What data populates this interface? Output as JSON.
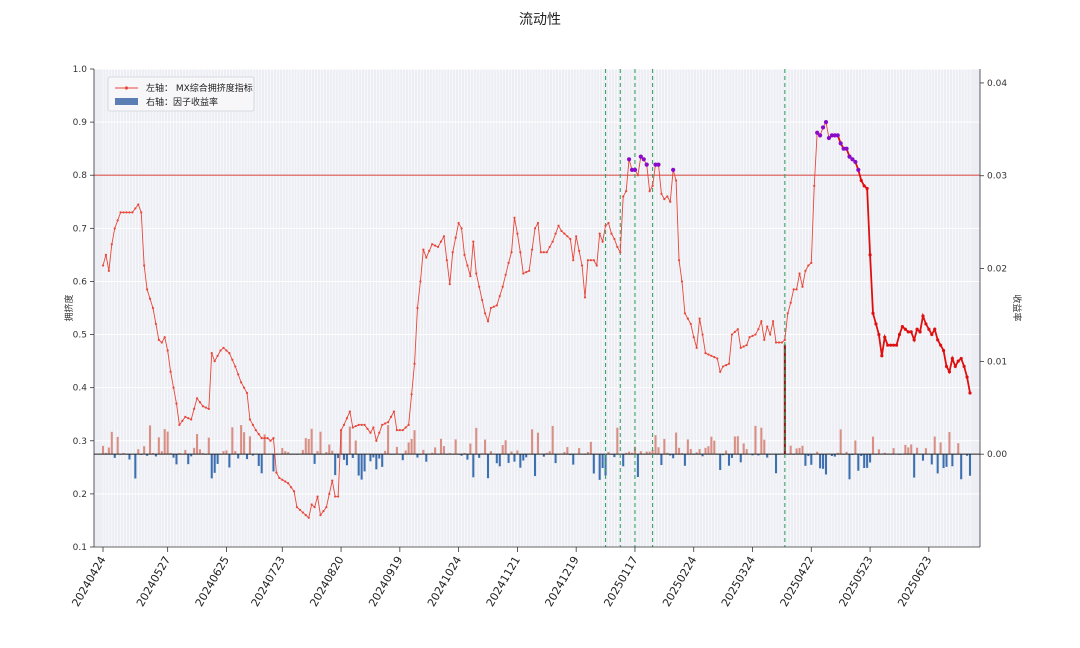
{
  "chart_data": {
    "type": "line",
    "title": "流动性",
    "ylabel_left": "拥挤度",
    "ylabel_right": "收益率",
    "ylim_left": [
      0.1,
      1.0
    ],
    "ylim_right": [
      -0.01,
      0.0415
    ],
    "yticks_left": [
      "0.1",
      "0.2",
      "0.3",
      "0.4",
      "0.5",
      "0.6",
      "0.7",
      "0.8",
      "0.9",
      "1.0"
    ],
    "yticks_right": [
      "0.00",
      "0.01",
      "0.02",
      "0.03",
      "0.04"
    ],
    "x_tick_labels": [
      "20240424",
      "20240527",
      "20240625",
      "20240723",
      "20240820",
      "20240919",
      "20241024",
      "20241121",
      "20241219",
      "20250117",
      "20250224",
      "20250324",
      "20250422",
      "20250523",
      "20250623"
    ],
    "x_tick_index": [
      0,
      22,
      42,
      61,
      81,
      101,
      121,
      141,
      161,
      181,
      201,
      221,
      241,
      261,
      281
    ],
    "n_points": 289,
    "threshold": 0.8,
    "legend": [
      {
        "label": "左轴： MX综合拥挤度指标",
        "kind": "line",
        "color": "#e8473a"
      },
      {
        "label": "右轴：因子收益率",
        "kind": "bar",
        "color": "#5b7fb4"
      }
    ],
    "legend_position": "upper-left",
    "grid": true,
    "colors": {
      "line": "#e8473a",
      "line_bold": "#e00f0f",
      "extreme": "#8b0bc9",
      "bar_pos": "#d98f84",
      "bar_neg": "#3d70b0",
      "bar_big": "#8c1a1a",
      "threshold": "#d9534f",
      "vline": "#2ca05a",
      "plot_bg": "#eceef4",
      "grid": "#ffffff"
    },
    "vlines_index": [
      171,
      176,
      181,
      187,
      232
    ],
    "bold_start_index": 247,
    "line_anchors": [
      [
        0,
        0.63
      ],
      [
        1,
        0.65
      ],
      [
        2,
        0.62
      ],
      [
        3,
        0.67
      ],
      [
        4,
        0.7
      ],
      [
        6,
        0.73
      ],
      [
        10,
        0.73
      ],
      [
        12,
        0.745
      ],
      [
        13,
        0.73
      ],
      [
        14,
        0.63
      ],
      [
        15,
        0.585
      ],
      [
        17,
        0.55
      ],
      [
        19,
        0.49
      ],
      [
        20,
        0.485
      ],
      [
        21,
        0.495
      ],
      [
        22,
        0.47
      ],
      [
        23,
        0.43
      ],
      [
        25,
        0.37
      ],
      [
        26,
        0.33
      ],
      [
        28,
        0.345
      ],
      [
        30,
        0.34
      ],
      [
        32,
        0.38
      ],
      [
        34,
        0.365
      ],
      [
        36,
        0.36
      ],
      [
        37,
        0.465
      ],
      [
        38,
        0.45
      ],
      [
        40,
        0.47
      ],
      [
        41,
        0.475
      ],
      [
        43,
        0.465
      ],
      [
        45,
        0.44
      ],
      [
        47,
        0.41
      ],
      [
        49,
        0.39
      ],
      [
        50,
        0.34
      ],
      [
        52,
        0.32
      ],
      [
        54,
        0.305
      ],
      [
        56,
        0.305
      ],
      [
        57,
        0.3
      ],
      [
        58,
        0.305
      ],
      [
        59,
        0.24
      ],
      [
        60,
        0.23
      ],
      [
        63,
        0.22
      ],
      [
        65,
        0.205
      ],
      [
        66,
        0.175
      ],
      [
        68,
        0.165
      ],
      [
        70,
        0.155
      ],
      [
        71,
        0.18
      ],
      [
        72,
        0.175
      ],
      [
        73,
        0.195
      ],
      [
        74,
        0.16
      ],
      [
        76,
        0.175
      ],
      [
        77,
        0.2
      ],
      [
        78,
        0.225
      ],
      [
        79,
        0.195
      ],
      [
        80,
        0.195
      ],
      [
        81,
        0.32
      ],
      [
        82,
        0.33
      ],
      [
        84,
        0.355
      ],
      [
        85,
        0.325
      ],
      [
        87,
        0.33
      ],
      [
        89,
        0.33
      ],
      [
        91,
        0.315
      ],
      [
        92,
        0.325
      ],
      [
        93,
        0.3
      ],
      [
        95,
        0.33
      ],
      [
        97,
        0.335
      ],
      [
        99,
        0.355
      ],
      [
        100,
        0.32
      ],
      [
        102,
        0.32
      ],
      [
        104,
        0.33
      ],
      [
        106,
        0.445
      ],
      [
        107,
        0.55
      ],
      [
        108,
        0.6
      ],
      [
        109,
        0.66
      ],
      [
        110,
        0.645
      ],
      [
        112,
        0.67
      ],
      [
        114,
        0.665
      ],
      [
        116,
        0.685
      ],
      [
        118,
        0.595
      ],
      [
        119,
        0.655
      ],
      [
        121,
        0.71
      ],
      [
        122,
        0.7
      ],
      [
        123,
        0.65
      ],
      [
        125,
        0.61
      ],
      [
        126,
        0.675
      ],
      [
        127,
        0.615
      ],
      [
        128,
        0.59
      ],
      [
        130,
        0.54
      ],
      [
        131,
        0.525
      ],
      [
        132,
        0.55
      ],
      [
        134,
        0.555
      ],
      [
        136,
        0.59
      ],
      [
        138,
        0.635
      ],
      [
        139,
        0.655
      ],
      [
        140,
        0.72
      ],
      [
        141,
        0.69
      ],
      [
        142,
        0.655
      ],
      [
        143,
        0.615
      ],
      [
        145,
        0.62
      ],
      [
        147,
        0.7
      ],
      [
        148,
        0.71
      ],
      [
        149,
        0.655
      ],
      [
        151,
        0.655
      ],
      [
        153,
        0.675
      ],
      [
        155,
        0.705
      ],
      [
        156,
        0.695
      ],
      [
        157,
        0.69
      ],
      [
        159,
        0.68
      ],
      [
        160,
        0.64
      ],
      [
        161,
        0.685
      ],
      [
        163,
        0.63
      ],
      [
        164,
        0.57
      ],
      [
        165,
        0.64
      ],
      [
        167,
        0.64
      ],
      [
        168,
        0.63
      ],
      [
        169,
        0.69
      ],
      [
        170,
        0.675
      ],
      [
        171,
        0.705
      ],
      [
        172,
        0.71
      ],
      [
        173,
        0.69
      ],
      [
        174,
        0.68
      ],
      [
        175,
        0.665
      ],
      [
        176,
        0.655
      ],
      [
        177,
        0.76
      ],
      [
        178,
        0.77
      ],
      [
        179,
        0.83
      ],
      [
        180,
        0.81
      ],
      [
        181,
        0.81
      ],
      [
        182,
        0.8
      ],
      [
        183,
        0.835
      ],
      [
        184,
        0.83
      ],
      [
        185,
        0.82
      ],
      [
        186,
        0.77
      ],
      [
        187,
        0.78
      ],
      [
        188,
        0.82
      ],
      [
        189,
        0.82
      ],
      [
        190,
        0.765
      ],
      [
        191,
        0.755
      ],
      [
        192,
        0.76
      ],
      [
        193,
        0.75
      ],
      [
        194,
        0.81
      ],
      [
        195,
        0.79
      ],
      [
        196,
        0.64
      ],
      [
        197,
        0.6
      ],
      [
        198,
        0.54
      ],
      [
        200,
        0.52
      ],
      [
        201,
        0.495
      ],
      [
        202,
        0.475
      ],
      [
        203,
        0.53
      ],
      [
        204,
        0.5
      ],
      [
        205,
        0.465
      ],
      [
        207,
        0.46
      ],
      [
        209,
        0.455
      ],
      [
        210,
        0.43
      ],
      [
        211,
        0.44
      ],
      [
        213,
        0.445
      ],
      [
        214,
        0.5
      ],
      [
        216,
        0.51
      ],
      [
        217,
        0.475
      ],
      [
        219,
        0.48
      ],
      [
        220,
        0.495
      ],
      [
        222,
        0.5
      ],
      [
        223,
        0.51
      ],
      [
        224,
        0.525
      ],
      [
        225,
        0.49
      ],
      [
        226,
        0.515
      ],
      [
        227,
        0.5
      ],
      [
        228,
        0.525
      ],
      [
        229,
        0.485
      ],
      [
        231,
        0.485
      ],
      [
        232,
        0.49
      ],
      [
        233,
        0.54
      ],
      [
        234,
        0.56
      ],
      [
        235,
        0.585
      ],
      [
        236,
        0.585
      ],
      [
        237,
        0.615
      ],
      [
        238,
        0.59
      ],
      [
        239,
        0.62
      ],
      [
        240,
        0.63
      ],
      [
        241,
        0.635
      ],
      [
        242,
        0.78
      ],
      [
        243,
        0.88
      ],
      [
        244,
        0.875
      ],
      [
        245,
        0.89
      ],
      [
        246,
        0.9
      ],
      [
        247,
        0.87
      ],
      [
        248,
        0.875
      ],
      [
        249,
        0.875
      ],
      [
        250,
        0.875
      ],
      [
        251,
        0.86
      ],
      [
        252,
        0.85
      ],
      [
        253,
        0.85
      ],
      [
        254,
        0.835
      ],
      [
        255,
        0.83
      ],
      [
        256,
        0.825
      ],
      [
        257,
        0.81
      ],
      [
        258,
        0.79
      ],
      [
        259,
        0.78
      ],
      [
        260,
        0.775
      ],
      [
        261,
        0.65
      ],
      [
        262,
        0.54
      ],
      [
        263,
        0.52
      ],
      [
        264,
        0.5
      ],
      [
        265,
        0.46
      ],
      [
        266,
        0.495
      ],
      [
        267,
        0.48
      ],
      [
        268,
        0.48
      ],
      [
        269,
        0.48
      ],
      [
        270,
        0.48
      ],
      [
        271,
        0.5
      ],
      [
        272,
        0.515
      ],
      [
        273,
        0.51
      ],
      [
        274,
        0.505
      ],
      [
        275,
        0.505
      ],
      [
        276,
        0.49
      ],
      [
        277,
        0.51
      ],
      [
        278,
        0.505
      ],
      [
        279,
        0.535
      ],
      [
        280,
        0.52
      ],
      [
        281,
        0.51
      ],
      [
        282,
        0.5
      ],
      [
        283,
        0.51
      ],
      [
        284,
        0.49
      ],
      [
        285,
        0.475
      ],
      [
        286,
        0.485
      ],
      [
        287,
        0.48
      ],
      [
        288,
        0.48
      ],
      [
        289,
        0.48
      ]
    ],
    "line_tail": [
      [
        284,
        0.49
      ],
      [
        285,
        0.48
      ],
      [
        286,
        0.47
      ],
      [
        287,
        0.44
      ],
      [
        288,
        0.43
      ],
      [
        289,
        0.455
      ],
      [
        290,
        0.44
      ],
      [
        291,
        0.45
      ],
      [
        292,
        0.455
      ],
      [
        293,
        0.44
      ],
      [
        294,
        0.42
      ],
      [
        295,
        0.39
      ]
    ],
    "bar_big": {
      "index": 232,
      "value": 0.0118
    },
    "bar_seed_note": ""
  }
}
